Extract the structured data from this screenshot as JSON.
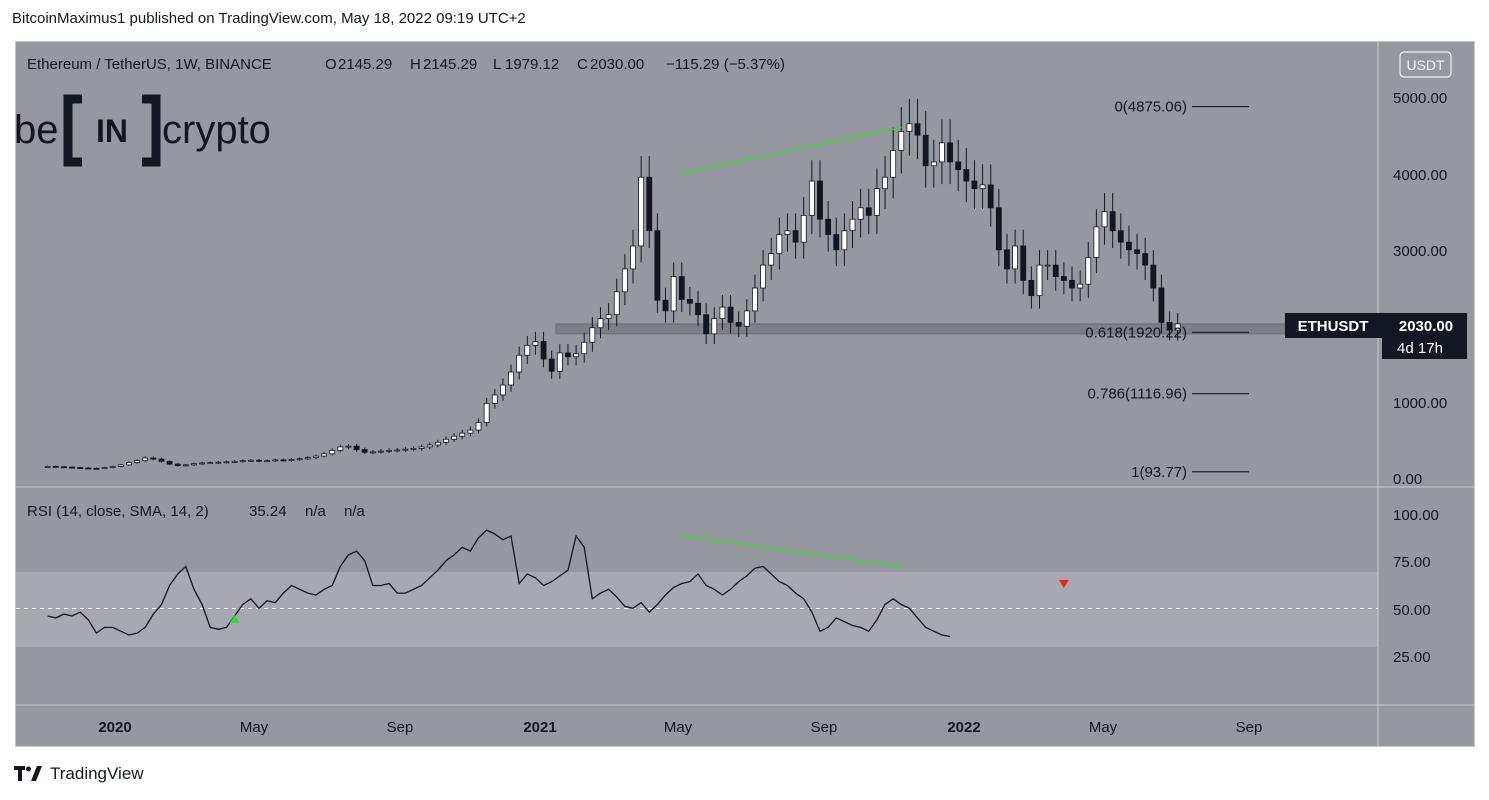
{
  "header": {
    "published_line": "BitcoinMaximus1 published on TradingView.com, May 18, 2022 09:19 UTC+2"
  },
  "footer": {
    "brand": "TradingView"
  },
  "logo": {
    "left_text": "be",
    "mid_text": "IN",
    "right_text": "crypto"
  },
  "legend": {
    "symbol": "Ethereum / TetherUS, 1W, BINANCE",
    "o_label": "O",
    "o_value": "2145.29",
    "h_label": "H",
    "h_value": "2145.29",
    "l_label": "L",
    "l_value": "1979.12",
    "c_label": "C",
    "c_value": "2030.00",
    "change": "−115.29 (−5.37%)"
  },
  "rsi_legend": {
    "label": "RSI (14, close, SMA, 14, 2)",
    "value": "35.24",
    "na1": "n/a",
    "na2": "n/a"
  },
  "currency_button": "USDT",
  "price_tag": {
    "symbol": "ETHUSDT",
    "price": "2030.00",
    "countdown": "4d 17h"
  },
  "colors": {
    "panel_bg": "#9698a0",
    "rsi_band": "#a7a8b0",
    "green": "#33dd33",
    "red": "#ee2222",
    "candle_up": "#ffffff",
    "candle_down": "#131722",
    "tag_bg": "#131722"
  },
  "chart_data": [
    {
      "type": "candlestick",
      "title": "Ethereum / TetherUS, 1W, BINANCE",
      "y_axis_ticks": [
        "5000.00",
        "4000.00",
        "3000.00",
        "1000.00",
        "0.00"
      ],
      "y_axis_values": [
        5000,
        4000,
        3000,
        1000,
        0
      ],
      "x_axis_ticks": [
        "2020",
        "May",
        "Sep",
        "2021",
        "May",
        "Sep",
        "2022",
        "May",
        "Sep"
      ],
      "ylim": [
        0,
        5150
      ],
      "fib_levels": [
        {
          "label": "0(4875.06)",
          "value": 4875.06
        },
        {
          "label": "0.618(1920.22)",
          "value": 1920.22
        },
        {
          "label": "0.786(1116.96)",
          "value": 1116.96
        },
        {
          "label": "1(93.77)",
          "value": 93.77
        }
      ],
      "support_zone": [
        1900,
        2030
      ],
      "close_series_weekly": [
        165,
        160,
        155,
        150,
        145,
        140,
        138,
        150,
        165,
        185,
        215,
        240,
        275,
        260,
        230,
        195,
        175,
        185,
        200,
        210,
        215,
        220,
        225,
        230,
        240,
        245,
        235,
        240,
        250,
        245,
        255,
        265,
        280,
        300,
        330,
        375,
        420,
        430,
        385,
        350,
        355,
        365,
        375,
        380,
        390,
        400,
        420,
        445,
        480,
        520,
        560,
        600,
        640,
        740,
        990,
        1100,
        1230,
        1400,
        1620,
        1750,
        1800,
        1570,
        1410,
        1650,
        1600,
        1640,
        1790,
        1980,
        2100,
        2150,
        2450,
        2750,
        3050,
        3950,
        3250,
        2340,
        2200,
        2650,
        2350,
        2300,
        2150,
        1900,
        2100,
        2250,
        2050,
        2000,
        2200,
        2500,
        2800,
        2950,
        3200,
        3250,
        3100,
        3450,
        3900,
        3400,
        3200,
        3000,
        3250,
        3400,
        3550,
        3450,
        3800,
        3950,
        4300,
        4550,
        4650,
        4500,
        4100,
        4150,
        4400,
        4150,
        4050,
        3900,
        3800,
        3850,
        3550,
        3000,
        2750,
        3050,
        2600,
        2400,
        2800,
        2800,
        2650,
        2600,
        2500,
        2550,
        2900,
        3300,
        3500,
        3250,
        3100,
        3000,
        2950,
        2800,
        2500,
        2050,
        1950,
        2030
      ],
      "green_line_points": [
        {
          "date": "2021-05-03",
          "price": 4000
        },
        {
          "date": "2021-11-08",
          "price": 4600
        }
      ]
    },
    {
      "type": "line",
      "title": "RSI (14, close, SMA, 14, 2)",
      "y_axis_ticks": [
        "100.00",
        "75.00",
        "50.00",
        "25.00"
      ],
      "ylim": [
        0,
        110
      ],
      "band": [
        30,
        70
      ],
      "midline": 50,
      "values": [
        46,
        45,
        47,
        46,
        48,
        44,
        37,
        40,
        40,
        38,
        36,
        37,
        40,
        47,
        52,
        62,
        68,
        72,
        60,
        52,
        40,
        39,
        40,
        46,
        52,
        55,
        50,
        54,
        53,
        58,
        62,
        60,
        58,
        57,
        60,
        62,
        72,
        78,
        80,
        75,
        62,
        62,
        63,
        58,
        58,
        60,
        62,
        66,
        70,
        75,
        78,
        82,
        80,
        87,
        91,
        89,
        86,
        88,
        63,
        68,
        66,
        62,
        64,
        67,
        70,
        88,
        82,
        55,
        58,
        60,
        56,
        51,
        50,
        53,
        48,
        52,
        57,
        61,
        63,
        64,
        68,
        62,
        60,
        57,
        60,
        64,
        67,
        71,
        72,
        68,
        64,
        62,
        58,
        55,
        48,
        38,
        40,
        45,
        43,
        41,
        40,
        38,
        44,
        52,
        55,
        52,
        50,
        45,
        40,
        38,
        36,
        35.24
      ],
      "green_line_points": [
        {
          "date": "2021-05-03",
          "rsi": 88
        },
        {
          "date": "2021-11-08",
          "rsi": 72
        }
      ],
      "markers": [
        {
          "shape": "up-triangle",
          "color": "green",
          "date": "2020-04-13"
        },
        {
          "shape": "down-triangle",
          "color": "red",
          "date": "2022-03-28"
        }
      ]
    }
  ]
}
